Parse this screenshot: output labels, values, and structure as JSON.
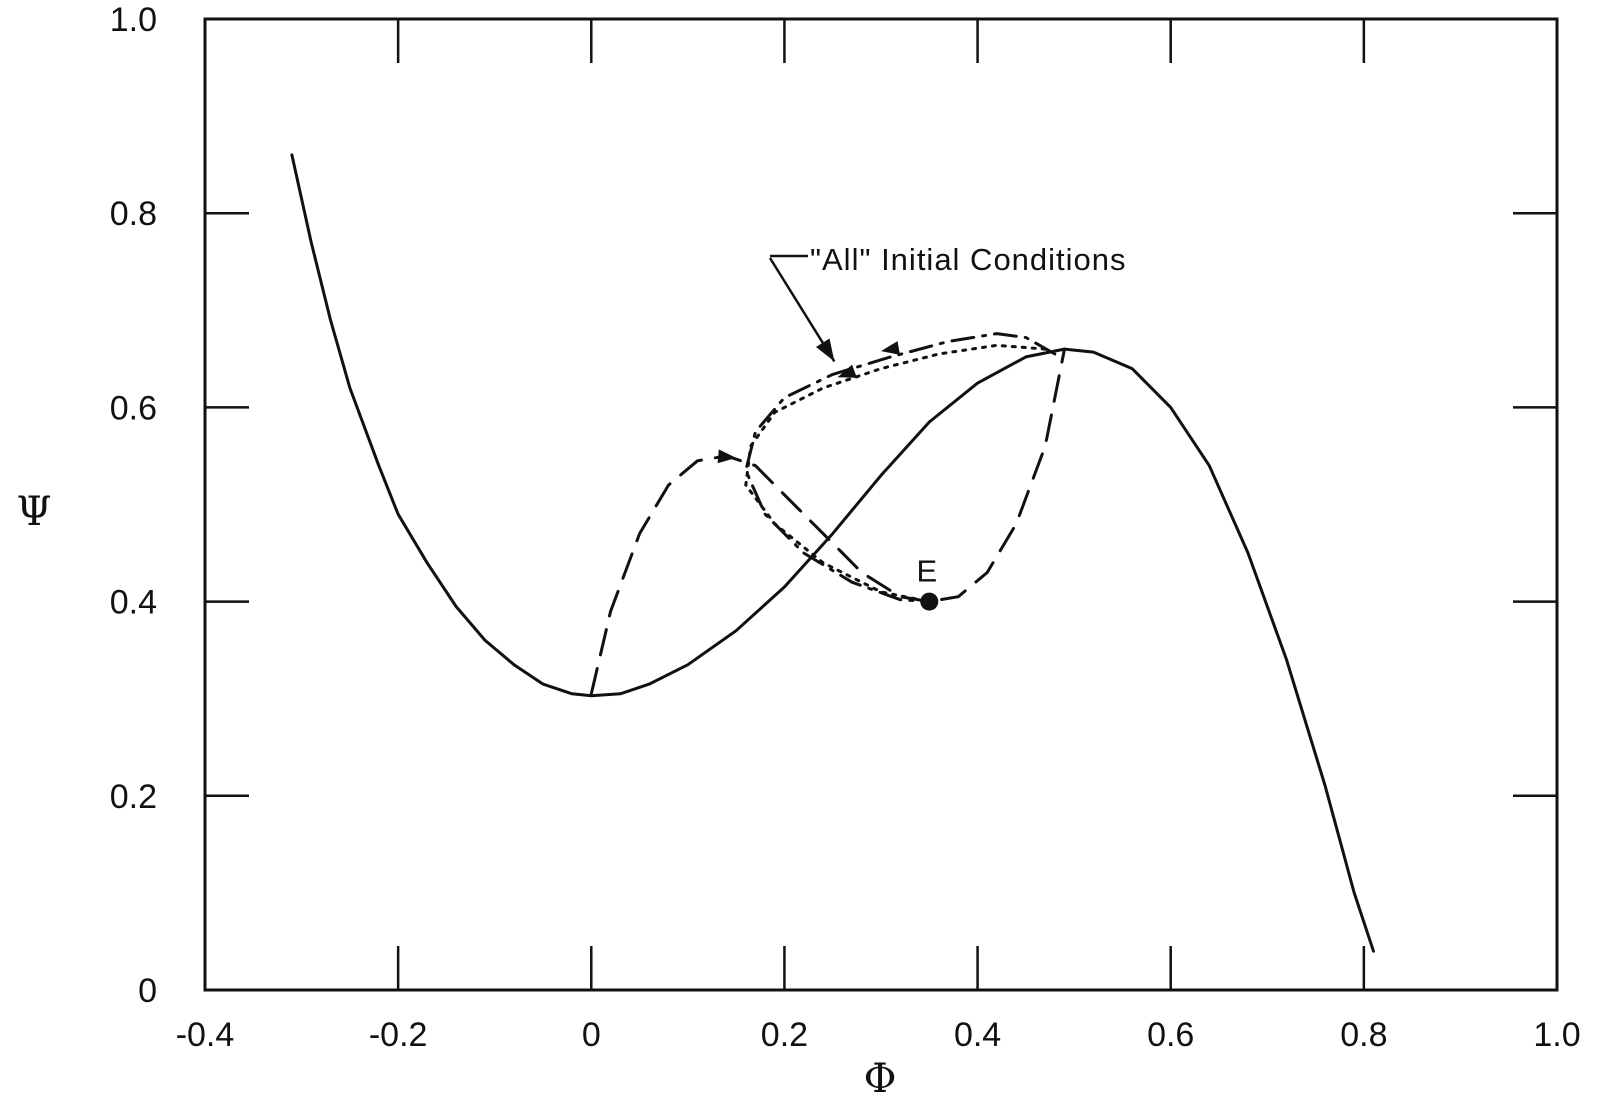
{
  "chart_data": {
    "type": "line",
    "title": "",
    "xlabel": "Φ",
    "ylabel": "Ψ",
    "xlim": [
      -0.4,
      1.0
    ],
    "ylim": [
      0,
      1.0
    ],
    "x_ticks": [
      "-0.4",
      "-0.2",
      "0",
      "0.2",
      "0.4",
      "0.6",
      "0.8",
      "1.0"
    ],
    "y_ticks": [
      "0",
      "0.2",
      "0.4",
      "0.6",
      "0.8",
      "1.0"
    ],
    "grid": false,
    "series": [
      {
        "style": "solid",
        "points": [
          [
            -0.31,
            0.86
          ],
          [
            -0.29,
            0.77
          ],
          [
            -0.27,
            0.69
          ],
          [
            -0.25,
            0.62
          ],
          [
            -0.22,
            0.54
          ],
          [
            -0.2,
            0.49
          ],
          [
            -0.17,
            0.44
          ],
          [
            -0.14,
            0.395
          ],
          [
            -0.11,
            0.36
          ],
          [
            -0.08,
            0.335
          ],
          [
            -0.05,
            0.315
          ],
          [
            -0.02,
            0.305
          ],
          [
            0.0,
            0.303
          ],
          [
            0.03,
            0.305
          ],
          [
            0.06,
            0.315
          ],
          [
            0.1,
            0.335
          ],
          [
            0.15,
            0.37
          ],
          [
            0.2,
            0.415
          ],
          [
            0.25,
            0.47
          ],
          [
            0.3,
            0.53
          ],
          [
            0.35,
            0.585
          ],
          [
            0.4,
            0.625
          ],
          [
            0.45,
            0.652
          ],
          [
            0.49,
            0.66
          ],
          [
            0.52,
            0.657
          ],
          [
            0.56,
            0.64
          ],
          [
            0.6,
            0.6
          ],
          [
            0.64,
            0.54
          ],
          [
            0.68,
            0.45
          ],
          [
            0.72,
            0.34
          ],
          [
            0.76,
            0.21
          ],
          [
            0.79,
            0.1
          ],
          [
            0.81,
            0.04
          ]
        ]
      },
      {
        "style": "dashed",
        "points": [
          [
            0.0,
            0.305
          ],
          [
            0.02,
            0.39
          ],
          [
            0.05,
            0.47
          ],
          [
            0.08,
            0.52
          ],
          [
            0.11,
            0.545
          ],
          [
            0.14,
            0.55
          ],
          [
            0.17,
            0.54
          ],
          [
            0.2,
            0.51
          ],
          [
            0.24,
            0.47
          ],
          [
            0.28,
            0.43
          ],
          [
            0.32,
            0.405
          ],
          [
            0.35,
            0.4
          ],
          [
            0.38,
            0.405
          ],
          [
            0.41,
            0.43
          ],
          [
            0.44,
            0.48
          ],
          [
            0.47,
            0.56
          ],
          [
            0.49,
            0.66
          ]
        ]
      },
      {
        "style": "dash-dot",
        "points": [
          [
            0.48,
            0.655
          ],
          [
            0.45,
            0.672
          ],
          [
            0.42,
            0.676
          ],
          [
            0.37,
            0.668
          ],
          [
            0.31,
            0.652
          ],
          [
            0.25,
            0.634
          ],
          [
            0.2,
            0.61
          ],
          [
            0.17,
            0.575
          ],
          [
            0.16,
            0.535
          ],
          [
            0.18,
            0.49
          ],
          [
            0.22,
            0.45
          ],
          [
            0.27,
            0.42
          ],
          [
            0.32,
            0.402
          ],
          [
            0.35,
            0.4
          ]
        ]
      },
      {
        "style": "dotted",
        "points": [
          [
            0.47,
            0.66
          ],
          [
            0.42,
            0.664
          ],
          [
            0.36,
            0.655
          ],
          [
            0.3,
            0.64
          ],
          [
            0.24,
            0.62
          ],
          [
            0.19,
            0.595
          ],
          [
            0.165,
            0.56
          ],
          [
            0.16,
            0.52
          ],
          [
            0.19,
            0.48
          ],
          [
            0.24,
            0.44
          ],
          [
            0.3,
            0.41
          ],
          [
            0.35,
            0.4
          ]
        ]
      }
    ],
    "point": {
      "label": "E",
      "x": 0.35,
      "y": 0.4
    },
    "annotation": {
      "text": "\"All\" Initial Conditions",
      "target": [
        0.26,
        0.635
      ]
    }
  }
}
